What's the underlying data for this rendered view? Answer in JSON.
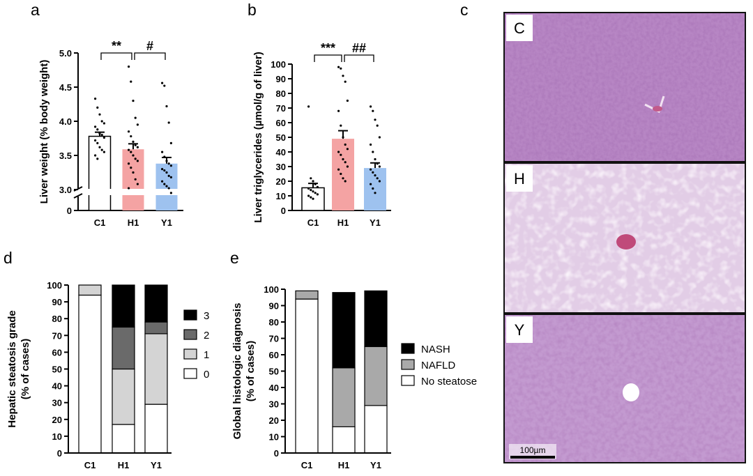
{
  "panel_labels": {
    "a": "a",
    "b": "b",
    "c": "c",
    "d": "d",
    "e": "e"
  },
  "chart_data": [
    {
      "id": "a",
      "type": "bar",
      "ylabel": "Liver weight (% body weight)",
      "categories": [
        "C1",
        "H1",
        "Y1"
      ],
      "values": [
        3.78,
        3.59,
        3.38
      ],
      "sem": [
        0.06,
        0.08,
        0.09
      ],
      "colors": [
        "#ffffff",
        "#f4a3a3",
        "#9ec2ef"
      ],
      "ylim": [
        3.0,
        5.0
      ],
      "axis_break": true,
      "yticks": [
        "0",
        "3.0",
        "3.5",
        "4.0",
        "4.5",
        "5.0"
      ],
      "points": [
        [
          4.33,
          4.2,
          4.1,
          4.0,
          3.97,
          3.92,
          3.88,
          3.82,
          3.8,
          3.76,
          3.72,
          3.68,
          3.62,
          3.58,
          3.55,
          3.5,
          3.45
        ],
        [
          4.8,
          4.58,
          4.3,
          4.05,
          3.95,
          3.85,
          3.78,
          3.7,
          3.65,
          3.62,
          3.58,
          3.55,
          3.5,
          3.45,
          3.42,
          3.38,
          3.32,
          3.25,
          3.15,
          3.08,
          3.02
        ],
        [
          4.56,
          4.52,
          4.22,
          3.98,
          3.68,
          3.55,
          3.48,
          3.42,
          3.38,
          3.35,
          3.3,
          3.28,
          3.25,
          3.2,
          3.18,
          3.12,
          3.08,
          3.05,
          3.02,
          2.95
        ]
      ],
      "significance": [
        {
          "from": 0,
          "to": 1,
          "label": "**"
        },
        {
          "from": 1,
          "to": 2,
          "label": "#"
        }
      ]
    },
    {
      "id": "b",
      "type": "bar",
      "ylabel": "Liver triglycerides (µmol/g of liver)",
      "categories": [
        "C1",
        "H1",
        "Y1"
      ],
      "values": [
        15.5,
        49,
        29
      ],
      "sem": [
        3,
        5.5,
        3.5
      ],
      "colors": [
        "#ffffff",
        "#f4a3a3",
        "#9ec2ef"
      ],
      "ylim": [
        0,
        100
      ],
      "yticks": [
        "0",
        "10",
        "20",
        "30",
        "40",
        "50",
        "60",
        "70",
        "80",
        "90",
        "100"
      ],
      "points": [
        [
          71,
          22,
          20,
          18,
          16,
          15,
          14,
          13,
          12,
          11,
          10,
          9,
          8
        ],
        [
          98,
          97,
          92,
          88,
          75,
          68,
          58,
          50,
          45,
          42,
          40,
          38,
          35,
          33,
          30,
          28,
          25,
          22,
          20
        ],
        [
          71,
          68,
          62,
          58,
          50,
          45,
          40,
          35,
          32,
          30,
          28,
          26,
          24,
          22,
          20,
          18,
          15,
          12
        ]
      ],
      "significance": [
        {
          "from": 0,
          "to": 1,
          "label": "***"
        },
        {
          "from": 1,
          "to": 2,
          "label": "##"
        }
      ]
    },
    {
      "id": "d",
      "type": "stacked-bar",
      "ylabel_lines": [
        "Hepatic steatosis grade",
        "(% of cases)"
      ],
      "categories": [
        "C1",
        "H1",
        "Y1"
      ],
      "ylim": [
        0,
        100
      ],
      "yticks": [
        "0",
        "10",
        "20",
        "30",
        "40",
        "50",
        "60",
        "70",
        "80",
        "90",
        "100"
      ],
      "series": [
        {
          "name": "0",
          "color": "#ffffff",
          "values": [
            94,
            17,
            29
          ]
        },
        {
          "name": "1",
          "color": "#d4d4d4",
          "values": [
            6,
            33,
            42
          ]
        },
        {
          "name": "2",
          "color": "#6a6a6a",
          "values": [
            0,
            25,
            7
          ]
        },
        {
          "name": "3",
          "color": "#000000",
          "values": [
            0,
            25,
            22
          ]
        }
      ],
      "legend_order": [
        3,
        2,
        1,
        0
      ]
    },
    {
      "id": "e",
      "type": "stacked-bar",
      "ylabel_lines": [
        "Global histologic diagnosis",
        "(% of cases)"
      ],
      "categories": [
        "C1",
        "H1",
        "Y1"
      ],
      "ylim": [
        0,
        100
      ],
      "yticks": [
        "0",
        "10",
        "20",
        "30",
        "40",
        "50",
        "60",
        "70",
        "80",
        "90",
        "100"
      ],
      "series": [
        {
          "name": "No steatose",
          "color": "#ffffff",
          "values": [
            94,
            16,
            29
          ]
        },
        {
          "name": "NAFLD",
          "color": "#a9a9a9",
          "values": [
            5,
            36,
            36
          ]
        },
        {
          "name": "NASH",
          "color": "#000000",
          "values": [
            0,
            46,
            34
          ]
        }
      ],
      "legend_order": [
        2,
        1,
        0
      ]
    }
  ],
  "micrographs": [
    {
      "label": "C",
      "kind": "normal"
    },
    {
      "label": "H",
      "kind": "steatosis"
    },
    {
      "label": "Y",
      "kind": "mixed"
    }
  ],
  "scale_bar": "100µm"
}
